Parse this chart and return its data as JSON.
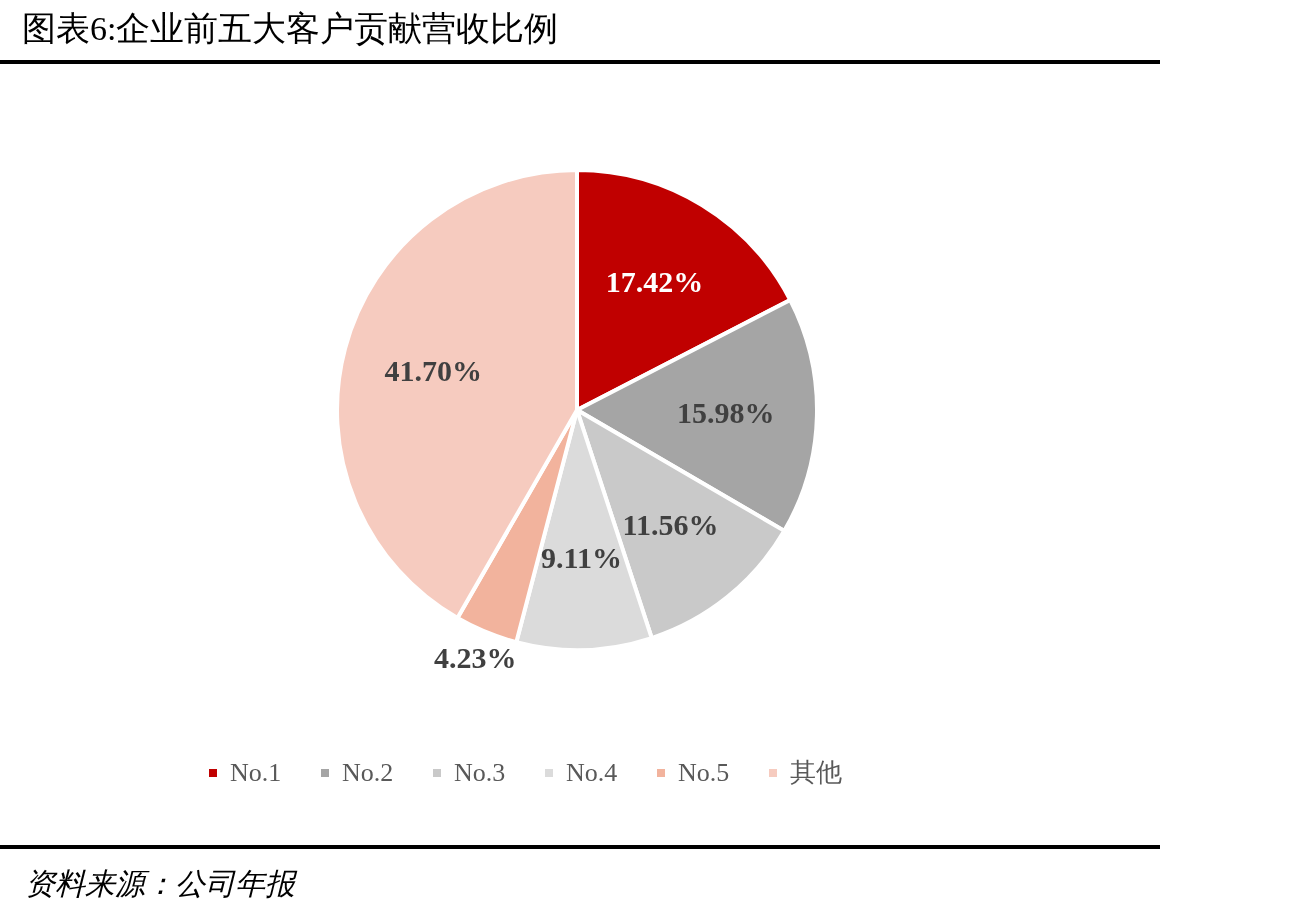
{
  "chart_data": {
    "type": "pie",
    "title": "图表6:企业前五大客户贡献营收比例",
    "categories": [
      "No.1",
      "No.2",
      "No.3",
      "No.4",
      "No.5",
      "其他"
    ],
    "values": [
      17.42,
      15.98,
      11.56,
      9.11,
      4.23,
      41.7
    ],
    "value_labels": [
      "17.42%",
      "15.98%",
      "11.56%",
      "9.11%",
      "4.23%",
      "41.70%"
    ],
    "colors": [
      "#c00000",
      "#a5a5a5",
      "#c9c9c9",
      "#dbdbdb",
      "#f2b39d",
      "#f6cbbf"
    ],
    "legend": "bottom",
    "annotations": [
      "资料来源：公司年报"
    ]
  }
}
